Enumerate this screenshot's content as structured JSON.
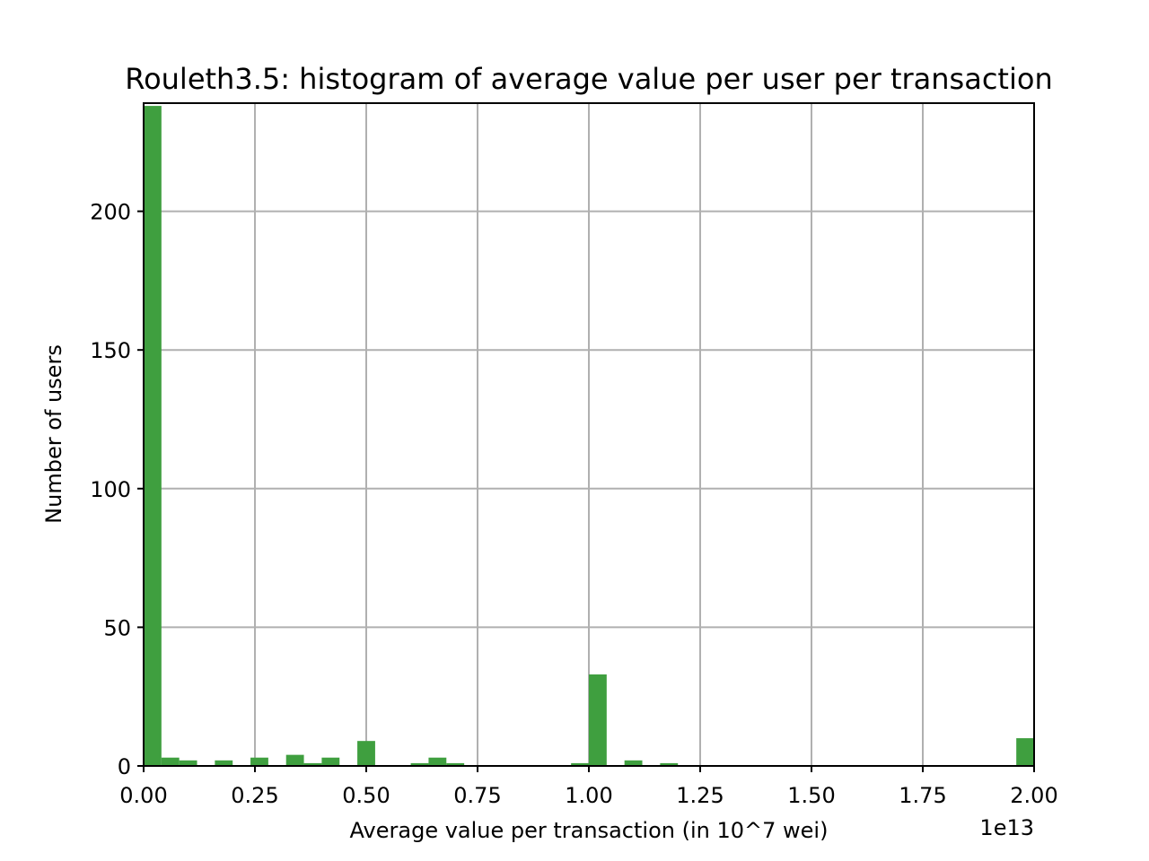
{
  "chart_data": {
    "type": "bar",
    "title": "Rouleth3.5: histogram of average value per user per transaction",
    "xlabel": "Average value per transaction (in 10^7 wei)",
    "ylabel": "Number of users",
    "x_offset_label": "1e13",
    "xlim": [
      0,
      2.0
    ],
    "ylim": [
      0,
      239
    ],
    "grid": true,
    "bar_color": "#3f9f3f",
    "bin_width": 0.04,
    "x_ticks": [
      "0.00",
      "0.25",
      "0.50",
      "0.75",
      "1.00",
      "1.25",
      "1.50",
      "1.75",
      "2.00"
    ],
    "y_ticks": [
      "0",
      "50",
      "100",
      "150",
      "200"
    ],
    "bins": [
      {
        "x": 0.0,
        "value": 238
      },
      {
        "x": 0.04,
        "value": 3
      },
      {
        "x": 0.08,
        "value": 2
      },
      {
        "x": 0.16,
        "value": 2
      },
      {
        "x": 0.24,
        "value": 3
      },
      {
        "x": 0.32,
        "value": 4
      },
      {
        "x": 0.36,
        "value": 1
      },
      {
        "x": 0.4,
        "value": 3
      },
      {
        "x": 0.48,
        "value": 9
      },
      {
        "x": 0.6,
        "value": 1
      },
      {
        "x": 0.64,
        "value": 3
      },
      {
        "x": 0.68,
        "value": 1
      },
      {
        "x": 0.96,
        "value": 1
      },
      {
        "x": 1.0,
        "value": 33
      },
      {
        "x": 1.08,
        "value": 2
      },
      {
        "x": 1.16,
        "value": 1
      },
      {
        "x": 1.96,
        "value": 10
      }
    ]
  }
}
